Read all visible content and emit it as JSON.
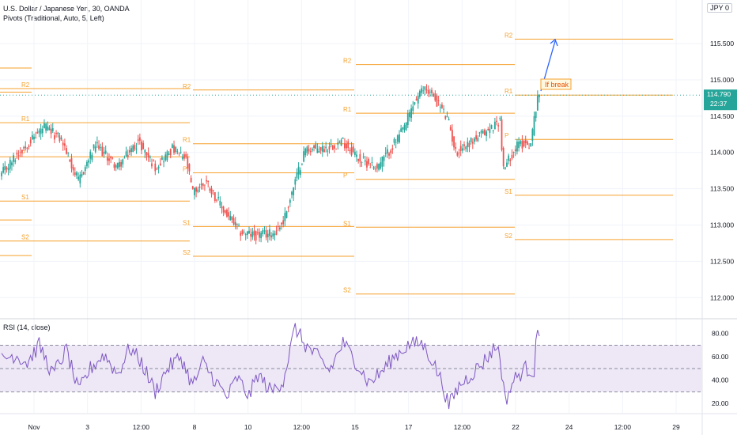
{
  "header": {
    "title": "U.S. Dollar / Japanese Yen, 30, OANDA",
    "indicator": "Pivots (Traditional, Auto, 5, Left)",
    "currency_badge": "JPY 0",
    "rsi_label": "RSI (14, close)"
  },
  "price_badge": {
    "value": "114.790",
    "countdown": "22:37"
  },
  "annotation": {
    "text": "If break"
  },
  "colors": {
    "up": "#26a69a",
    "down": "#ef5350",
    "pivot": "#f6a02d",
    "rsi": "#7e57c2",
    "badge": "#26a69a",
    "arrow": "#2962ff",
    "rsi_band": "#ede7f6",
    "grid": "#f0f3fa"
  },
  "chart_data": {
    "type": "candlestick",
    "price_axis": {
      "ylim": [
        111.72,
        116.1
      ],
      "ticks": [
        "115.500",
        "115.000",
        "114.500",
        "114.000",
        "113.500",
        "113.000",
        "112.500",
        "112.000"
      ]
    },
    "time_axis": {
      "labels": [
        "Nov",
        "3",
        "12:00",
        "8",
        "10",
        "12:00",
        "15",
        "17",
        "12:00",
        "22",
        "24",
        "12:00",
        "29"
      ]
    },
    "close_anchors": [
      [
        0,
        113.7
      ],
      [
        10,
        114.0
      ],
      [
        25,
        114.35
      ],
      [
        35,
        114.18
      ],
      [
        45,
        113.6
      ],
      [
        55,
        114.1
      ],
      [
        68,
        113.8
      ],
      [
        80,
        114.15
      ],
      [
        90,
        113.8
      ],
      [
        100,
        114.05
      ],
      [
        108,
        113.9
      ],
      [
        112,
        113.45
      ],
      [
        120,
        113.6
      ],
      [
        130,
        113.2
      ],
      [
        140,
        112.9
      ],
      [
        150,
        112.85
      ],
      [
        160,
        112.9
      ],
      [
        165,
        113.05
      ],
      [
        172,
        113.6
      ],
      [
        178,
        114.05
      ],
      [
        188,
        114.05
      ],
      [
        200,
        114.15
      ],
      [
        210,
        113.9
      ],
      [
        220,
        113.8
      ],
      [
        228,
        114.05
      ],
      [
        235,
        114.3
      ],
      [
        242,
        114.7
      ],
      [
        248,
        114.9
      ],
      [
        252,
        114.8
      ],
      [
        258,
        114.6
      ],
      [
        262,
        114.4
      ],
      [
        266,
        114.0
      ],
      [
        275,
        114.15
      ],
      [
        285,
        114.3
      ],
      [
        292,
        114.45
      ],
      [
        294,
        113.75
      ],
      [
        298,
        113.95
      ],
      [
        303,
        114.12
      ],
      [
        310,
        114.12
      ],
      [
        314,
        114.8
      ]
    ],
    "pivots": [
      {
        "start": "Nov",
        "levels": [
          {
            "label": "R2",
            "value": 114.88
          },
          {
            "label": "R1",
            "value": 114.41
          },
          {
            "label": "P",
            "value": 113.94
          },
          {
            "label": "S1",
            "value": 113.33
          },
          {
            "label": "S2",
            "value": 112.78
          }
        ]
      },
      {
        "start": "8",
        "levels": [
          {
            "label": "R2",
            "value": 114.86
          },
          {
            "label": "R1",
            "value": 114.12
          },
          {
            "label": "P",
            "value": 113.72
          },
          {
            "label": "S1",
            "value": 112.98
          },
          {
            "label": "S2",
            "value": 112.57
          }
        ]
      },
      {
        "start": "15",
        "levels": [
          {
            "label": "R2",
            "value": 115.21
          },
          {
            "label": "R1",
            "value": 114.54
          },
          {
            "label": "P",
            "value": 113.63
          },
          {
            "label": "S1",
            "value": 112.97
          },
          {
            "label": "S2",
            "value": 112.05
          }
        ]
      },
      {
        "start": "22",
        "levels": [
          {
            "label": "R2",
            "value": 115.56
          },
          {
            "label": "R1",
            "value": 114.79
          },
          {
            "label": "P",
            "value": 114.18
          },
          {
            "label": "S1",
            "value": 113.41
          },
          {
            "label": "S2",
            "value": 112.8
          }
        ]
      }
    ],
    "rsi": {
      "ylim": [
        12,
        92
      ],
      "ticks": [
        "80.00",
        "60.00",
        "40.00",
        "20.00"
      ],
      "upper": 70,
      "middle": 50,
      "lower": 30,
      "anchors": [
        [
          0,
          58
        ],
        [
          8,
          62
        ],
        [
          15,
          55
        ],
        [
          22,
          70
        ],
        [
          30,
          45
        ],
        [
          38,
          66
        ],
        [
          45,
          30
        ],
        [
          52,
          50
        ],
        [
          60,
          62
        ],
        [
          68,
          45
        ],
        [
          75,
          68
        ],
        [
          82,
          55
        ],
        [
          90,
          30
        ],
        [
          97,
          50
        ],
        [
          105,
          60
        ],
        [
          112,
          35
        ],
        [
          118,
          55
        ],
        [
          125,
          40
        ],
        [
          132,
          25
        ],
        [
          138,
          42
        ],
        [
          145,
          26
        ],
        [
          150,
          45
        ],
        [
          158,
          30
        ],
        [
          165,
          40
        ],
        [
          172,
          85
        ],
        [
          178,
          70
        ],
        [
          185,
          60
        ],
        [
          192,
          48
        ],
        [
          200,
          72
        ],
        [
          208,
          55
        ],
        [
          215,
          38
        ],
        [
          222,
          46
        ],
        [
          230,
          60
        ],
        [
          238,
          70
        ],
        [
          246,
          72
        ],
        [
          252,
          58
        ],
        [
          258,
          38
        ],
        [
          262,
          18
        ],
        [
          268,
          35
        ],
        [
          275,
          45
        ],
        [
          282,
          55
        ],
        [
          290,
          70
        ],
        [
          292,
          60
        ],
        [
          295,
          22
        ],
        [
          300,
          40
        ],
        [
          307,
          50
        ],
        [
          312,
          48
        ],
        [
          313,
          78
        ],
        [
          315,
          75
        ]
      ]
    }
  }
}
